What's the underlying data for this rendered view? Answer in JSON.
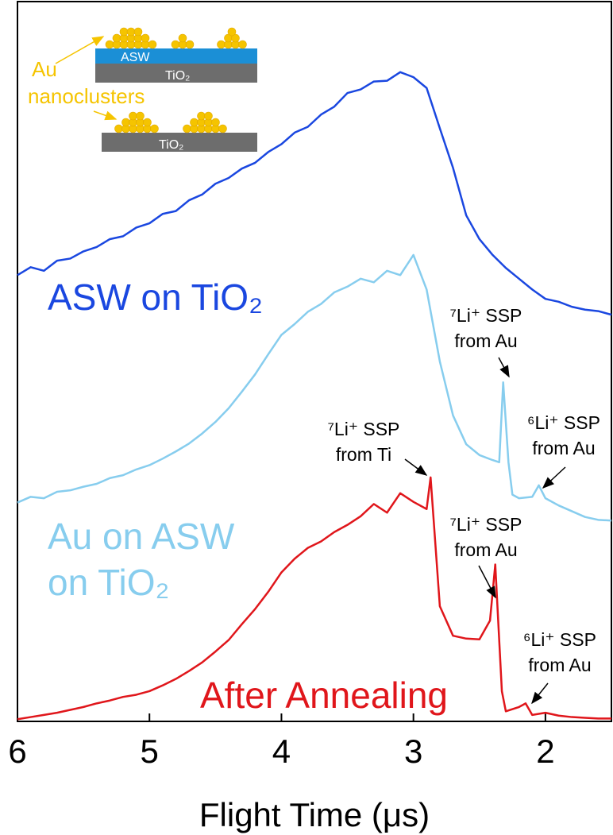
{
  "chart_data": {
    "type": "line",
    "xlabel": "Flight Time (μs)",
    "xlim": [
      6,
      1.5
    ],
    "xticks": [
      6,
      5,
      4,
      3,
      2
    ],
    "ylim": [
      0,
      100
    ],
    "series": [
      {
        "name": "ASW on TiO₂",
        "color": "#1a47e0",
        "x": [
          6.0,
          5.9,
          5.8,
          5.7,
          5.6,
          5.5,
          5.4,
          5.3,
          5.2,
          5.1,
          5.0,
          4.9,
          4.8,
          4.7,
          4.6,
          4.5,
          4.4,
          4.3,
          4.2,
          4.1,
          4.0,
          3.9,
          3.8,
          3.7,
          3.6,
          3.5,
          3.4,
          3.3,
          3.2,
          3.1,
          3.0,
          2.9,
          2.8,
          2.7,
          2.6,
          2.5,
          2.4,
          2.3,
          2.2,
          2.1,
          2.0,
          1.9,
          1.8,
          1.7,
          1.6,
          1.5
        ],
        "values": [
          62.0,
          63.1,
          62.6,
          64.0,
          64.3,
          65.3,
          65.9,
          67.0,
          67.4,
          68.6,
          69.2,
          70.5,
          70.9,
          72.4,
          73.2,
          74.7,
          75.5,
          76.8,
          77.6,
          79.1,
          80.2,
          81.8,
          82.6,
          84.3,
          85.4,
          87.3,
          87.8,
          88.9,
          89.0,
          90.2,
          89.5,
          88.0,
          82.4,
          76.9,
          70.3,
          67.0,
          64.8,
          63.0,
          61.5,
          60.0,
          58.7,
          58.3,
          57.6,
          57.2,
          57.0,
          56.5
        ]
      },
      {
        "name": "Au on ASW on TiO₂",
        "color": "#87cdee",
        "x": [
          6.0,
          5.9,
          5.8,
          5.7,
          5.6,
          5.5,
          5.4,
          5.3,
          5.2,
          5.1,
          5.0,
          4.9,
          4.8,
          4.7,
          4.6,
          4.5,
          4.4,
          4.3,
          4.2,
          4.1,
          4.0,
          3.9,
          3.8,
          3.7,
          3.6,
          3.5,
          3.4,
          3.3,
          3.2,
          3.1,
          3.0,
          2.9,
          2.8,
          2.7,
          2.6,
          2.5,
          2.4,
          2.35,
          2.32,
          2.28,
          2.25,
          2.2,
          2.1,
          2.05,
          2.0,
          1.9,
          1.8,
          1.7,
          1.6,
          1.5
        ],
        "values": [
          30.4,
          31.2,
          31.0,
          31.9,
          32.1,
          32.6,
          33.0,
          33.8,
          34.2,
          35.0,
          35.6,
          36.5,
          37.5,
          38.6,
          40.0,
          41.6,
          43.5,
          45.8,
          48.2,
          51.0,
          53.7,
          55.2,
          56.9,
          58.0,
          59.6,
          60.4,
          61.5,
          61.0,
          62.6,
          62.0,
          64.8,
          60.0,
          50.0,
          42.5,
          38.5,
          37.0,
          36.3,
          36.0,
          47.1,
          36.0,
          31.5,
          31.0,
          31.2,
          32.8,
          31.0,
          30.0,
          29.2,
          28.4,
          28.0,
          27.9
        ]
      },
      {
        "name": "After Annealing",
        "color": "#e0161b",
        "x": [
          6.0,
          5.9,
          5.8,
          5.7,
          5.6,
          5.5,
          5.4,
          5.3,
          5.2,
          5.1,
          5.0,
          4.9,
          4.8,
          4.7,
          4.6,
          4.5,
          4.4,
          4.3,
          4.2,
          4.1,
          4.0,
          3.9,
          3.8,
          3.7,
          3.6,
          3.5,
          3.4,
          3.3,
          3.2,
          3.1,
          3.0,
          2.9,
          2.87,
          2.8,
          2.7,
          2.6,
          2.5,
          2.42,
          2.38,
          2.33,
          2.3,
          2.2,
          2.15,
          2.1,
          2.0,
          1.9,
          1.8,
          1.7,
          1.6,
          1.5
        ],
        "values": [
          0.3,
          0.6,
          0.9,
          1.2,
          1.6,
          2.0,
          2.5,
          2.9,
          3.4,
          3.7,
          4.2,
          5.0,
          5.9,
          7.0,
          8.2,
          9.7,
          11.3,
          13.5,
          15.6,
          18.0,
          20.7,
          22.6,
          24.1,
          25.0,
          26.3,
          27.3,
          28.5,
          30.2,
          29.0,
          31.7,
          30.5,
          29.5,
          33.9,
          16.0,
          11.9,
          11.5,
          11.4,
          14.0,
          21.8,
          4.2,
          1.4,
          2.0,
          2.5,
          0.9,
          1.2,
          0.8,
          0.6,
          0.5,
          0.4,
          0.4
        ]
      }
    ],
    "annotations": [
      {
        "lines": [
          "⁷Li⁺ SSP",
          "from Au"
        ]
      },
      {
        "lines": [
          "⁶Li⁺ SSP",
          "from Au"
        ]
      },
      {
        "lines": [
          "⁷Li⁺ SSP",
          "from Ti"
        ]
      },
      {
        "lines": [
          "⁷Li⁺ SSP",
          "from Au"
        ]
      },
      {
        "lines": [
          "⁶Li⁺ SSP",
          "from Au"
        ]
      }
    ],
    "inset": {
      "au_label": "Au",
      "nanoclusters_label": "nanoclusters",
      "asw_label": "ASW",
      "tio2_top": "TiO₂",
      "tio2_bottom": "TiO₂"
    }
  }
}
